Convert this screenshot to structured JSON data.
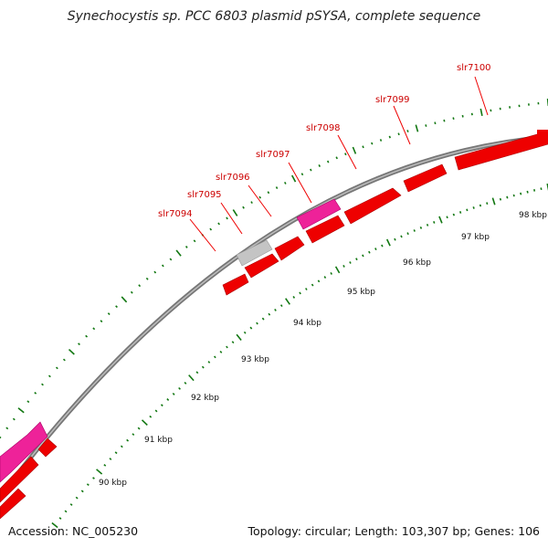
{
  "title": "Synechocystis sp. PCC 6803 plasmid pSYSA, complete sequence",
  "footer": {
    "accession": "Accession: NC_005230",
    "summary": "Topology: circular; Length: 103,307 bp; Genes: 106"
  },
  "scale_labels": [
    "90 kbp",
    "91 kbp",
    "92 kbp",
    "93 kbp",
    "94 kbp",
    "95 kbp",
    "96 kbp",
    "97 kbp",
    "98 kbp"
  ],
  "genes": [
    {
      "id": "slr7094",
      "label": "slr7094"
    },
    {
      "id": "slr7095",
      "label": "slr7095"
    },
    {
      "id": "slr7096",
      "label": "slr7096"
    },
    {
      "id": "slr7097",
      "label": "slr7097"
    },
    {
      "id": "slr7098",
      "label": "slr7098"
    },
    {
      "id": "slr7099",
      "label": "slr7099"
    },
    {
      "id": "slr7100",
      "label": "slr7100"
    }
  ],
  "colors": {
    "feature_red": "#ee0000",
    "feature_pink": "#ee2299",
    "feature_grey": "#bbbbbb",
    "backbone": "#888888",
    "tick_green": "#117711",
    "label_red": "#cc0000"
  }
}
